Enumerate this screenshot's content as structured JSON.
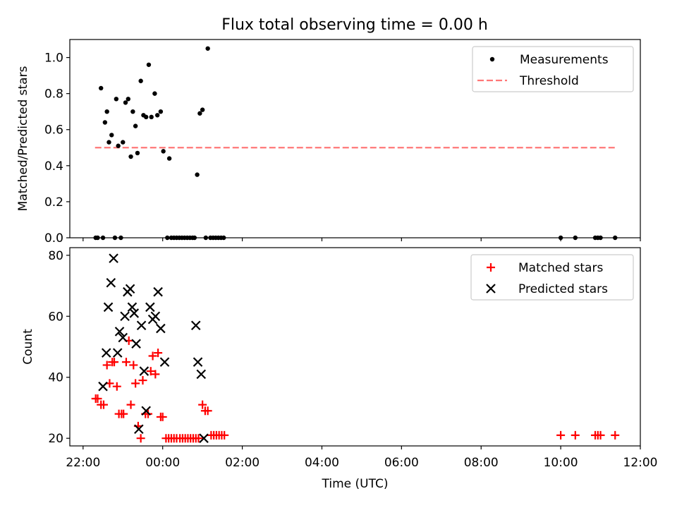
{
  "figure_title": "Flux total observing time = 0.00 h",
  "chart_data": [
    {
      "type": "scatter",
      "ylabel": "Matched/Predicted stars",
      "xlabel": "",
      "xlim": [
        "21:40",
        "12:00"
      ],
      "ylim": [
        0,
        1.1
      ],
      "yticks": [
        "0.0",
        "0.2",
        "0.4",
        "0.6",
        "0.8",
        "1.0"
      ],
      "xtick_positions_hours": [
        -2,
        0,
        2,
        4,
        6,
        8,
        10,
        12
      ],
      "legend_position": "upper right",
      "legend": [
        {
          "label": "Measurements",
          "marker": "dot",
          "color": "#000000"
        },
        {
          "label": "Threshold",
          "marker": "dashed-line",
          "color": "#ff7777"
        }
      ],
      "threshold": {
        "value": 0.5,
        "x_start": "22:18",
        "x_end": "11:22",
        "color": "#ff7777"
      },
      "series": [
        {
          "name": "Measurements",
          "color": "#000000",
          "points": [
            [
              "22:19",
              0
            ],
            [
              "22:22",
              0
            ],
            [
              "22:30",
              0
            ],
            [
              "22:27",
              0.83
            ],
            [
              "22:33",
              0.64
            ],
            [
              "22:36",
              0.7
            ],
            [
              "22:39",
              0.53
            ],
            [
              "22:43",
              0.57
            ],
            [
              "22:48",
              0
            ],
            [
              "22:50",
              0.77
            ],
            [
              "22:53",
              0.51
            ],
            [
              "22:57",
              0
            ],
            [
              "23:00",
              0.53
            ],
            [
              "23:04",
              0.75
            ],
            [
              "23:08",
              0.77
            ],
            [
              "23:12",
              0.45
            ],
            [
              "23:15",
              0.7
            ],
            [
              "23:19",
              0.62
            ],
            [
              "23:22",
              0.47
            ],
            [
              "23:27",
              0.87
            ],
            [
              "23:31",
              0.68
            ],
            [
              "23:35",
              0.67
            ],
            [
              "23:39",
              0.96
            ],
            [
              "23:43",
              0.67
            ],
            [
              "23:48",
              0.8
            ],
            [
              "23:52",
              0.68
            ],
            [
              "23:57",
              0.7
            ],
            [
              "00:01",
              0.48
            ],
            [
              "00:10",
              0.44
            ],
            [
              "00:07",
              0
            ],
            [
              "00:13",
              0
            ],
            [
              "00:17",
              0
            ],
            [
              "00:21",
              0
            ],
            [
              "00:25",
              0
            ],
            [
              "00:29",
              0
            ],
            [
              "00:33",
              0
            ],
            [
              "00:37",
              0
            ],
            [
              "00:41",
              0
            ],
            [
              "00:45",
              0
            ],
            [
              "00:48",
              0
            ],
            [
              "00:52",
              0.35
            ],
            [
              "00:56",
              0.69
            ],
            [
              "01:00",
              0.71
            ],
            [
              "01:08",
              1.05
            ],
            [
              "01:05",
              0
            ],
            [
              "01:12",
              0
            ],
            [
              "01:16",
              0
            ],
            [
              "01:20",
              0
            ],
            [
              "01:24",
              0
            ],
            [
              "01:28",
              0
            ],
            [
              "01:32",
              0
            ],
            [
              "10:00",
              0
            ],
            [
              "10:22",
              0
            ],
            [
              "10:52",
              0
            ],
            [
              "10:56",
              0
            ],
            [
              "11:00",
              0
            ],
            [
              "11:22",
              0
            ]
          ]
        }
      ]
    },
    {
      "type": "scatter",
      "ylabel": "Count",
      "xlabel": "Time (UTC)",
      "xlim": [
        "21:40",
        "12:00"
      ],
      "ylim": [
        17.5,
        82.5
      ],
      "yticks": [
        "20",
        "40",
        "60",
        "80"
      ],
      "xticks": [
        "22:00",
        "00:00",
        "02:00",
        "04:00",
        "06:00",
        "08:00",
        "10:00",
        "12:00"
      ],
      "xtick_positions_hours": [
        -2,
        0,
        2,
        4,
        6,
        8,
        10,
        12
      ],
      "legend_position": "upper right",
      "legend": [
        {
          "label": "Matched stars",
          "marker": "plus",
          "color": "#ff0000"
        },
        {
          "label": "Predicted stars",
          "marker": "x",
          "color": "#000000"
        }
      ],
      "series": [
        {
          "name": "Matched stars",
          "color": "#ff0000",
          "points": [
            [
              "22:19",
              33
            ],
            [
              "22:22",
              33
            ],
            [
              "22:27",
              31
            ],
            [
              "22:31",
              31
            ],
            [
              "22:36",
              44
            ],
            [
              "22:40",
              38
            ],
            [
              "22:44",
              45
            ],
            [
              "22:47",
              45
            ],
            [
              "22:51",
              37
            ],
            [
              "22:54",
              28
            ],
            [
              "22:58",
              28
            ],
            [
              "23:01",
              28
            ],
            [
              "23:05",
              45
            ],
            [
              "23:09",
              52
            ],
            [
              "23:12",
              31
            ],
            [
              "23:16",
              44
            ],
            [
              "23:19",
              38
            ],
            [
              "23:23",
              24
            ],
            [
              "23:27",
              20
            ],
            [
              "23:30",
              39
            ],
            [
              "23:34",
              28
            ],
            [
              "23:38",
              28
            ],
            [
              "23:42",
              42
            ],
            [
              "23:45",
              47
            ],
            [
              "23:49",
              41
            ],
            [
              "23:53",
              48
            ],
            [
              "23:57",
              27
            ],
            [
              "24:00",
              27
            ],
            [
              "24:05",
              20
            ],
            [
              "24:09",
              20
            ],
            [
              "24:13",
              20
            ],
            [
              "24:17",
              20
            ],
            [
              "24:21",
              20
            ],
            [
              "24:26",
              20
            ],
            [
              "24:30",
              20
            ],
            [
              "24:34",
              20
            ],
            [
              "24:38",
              20
            ],
            [
              "24:42",
              20
            ],
            [
              "24:46",
              20
            ],
            [
              "24:50",
              20
            ],
            [
              "24:54",
              20
            ],
            [
              "25:00",
              31
            ],
            [
              "25:04",
              29
            ],
            [
              "25:08",
              29
            ],
            [
              "25:13",
              21
            ],
            [
              "25:17",
              21
            ],
            [
              "25:21",
              21
            ],
            [
              "25:25",
              21
            ],
            [
              "25:29",
              21
            ],
            [
              "25:33",
              21
            ],
            [
              "34:00",
              21
            ],
            [
              "34:22",
              21
            ],
            [
              "34:52",
              21
            ],
            [
              "34:56",
              21
            ],
            [
              "35:00",
              21
            ],
            [
              "35:22",
              21
            ]
          ]
        },
        {
          "name": "Predicted stars",
          "color": "#000000",
          "points": [
            [
              "22:30",
              37
            ],
            [
              "22:35",
              48
            ],
            [
              "22:38",
              63
            ],
            [
              "22:42",
              71
            ],
            [
              "22:46",
              79
            ],
            [
              "22:52",
              48
            ],
            [
              "22:55",
              55
            ],
            [
              "23:00",
              53
            ],
            [
              "23:03",
              60
            ],
            [
              "23:07",
              68
            ],
            [
              "23:11",
              69
            ],
            [
              "23:14",
              63
            ],
            [
              "23:17",
              61
            ],
            [
              "23:20",
              51
            ],
            [
              "23:24",
              23
            ],
            [
              "23:28",
              57
            ],
            [
              "23:32",
              42
            ],
            [
              "23:35",
              29
            ],
            [
              "23:41",
              63
            ],
            [
              "23:45",
              59
            ],
            [
              "23:49",
              60
            ],
            [
              "23:53",
              68
            ],
            [
              "23:57",
              56
            ],
            [
              "24:03",
              45
            ],
            [
              "24:50",
              57
            ],
            [
              "24:53",
              45
            ],
            [
              "24:58",
              41
            ],
            [
              "25:02",
              20
            ]
          ]
        }
      ]
    }
  ]
}
